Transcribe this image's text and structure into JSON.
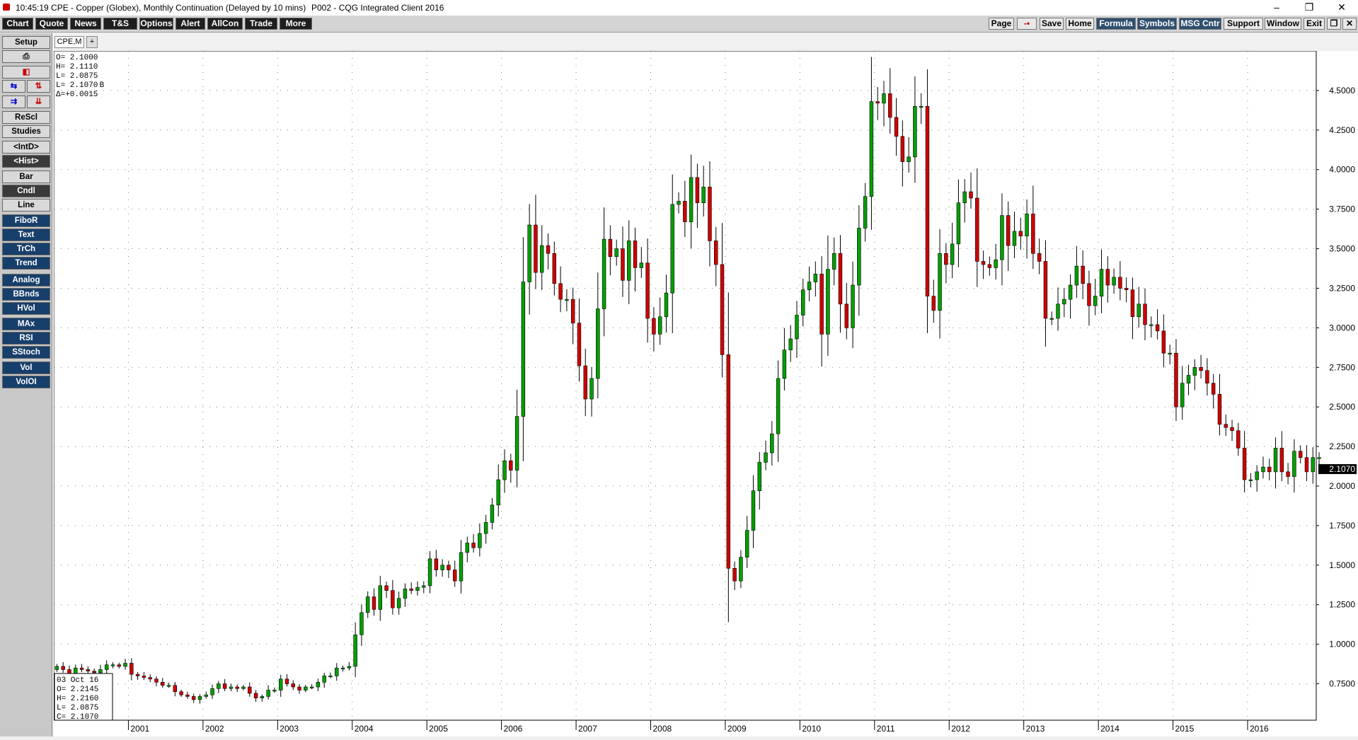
{
  "window": {
    "title": "10:45:19  CPE - Copper (Globex), Monthly Continuation (Delayed by 10 mins)",
    "status": "P002 - CQG Integrated Client 2016",
    "controls": [
      "–",
      "❐",
      "✕"
    ]
  },
  "menubar": {
    "left": [
      "Chart",
      "Quote",
      "News",
      "T&S",
      "Options",
      "Alert",
      "AllCon",
      "Trade",
      "More"
    ],
    "right": [
      "Page",
      "-•",
      "Save",
      "Home",
      "Formula",
      "Symbols",
      "MSG Cntr",
      "Support",
      "Window",
      "Exit",
      "❐",
      "✕"
    ]
  },
  "sidebar": {
    "setup": "Setup",
    "print_icon": "⎙",
    "icon_row1": "◧",
    "icon_row2": [
      "⇆",
      "⇅"
    ],
    "icon_row3": [
      "⇉",
      "⇊"
    ],
    "buttons": [
      "ReScl",
      "Studies",
      "<IntD>",
      "<Hist>",
      "Bar",
      "Cndl",
      "Line",
      "FiboR",
      "Text",
      "TrCh",
      "Trend",
      "Analog",
      "BBnds",
      "HVol",
      "MAx",
      "RSI",
      "SStoch",
      "Vol",
      "VolOI"
    ]
  },
  "tabs": {
    "active": "CPE,M",
    "add": "+"
  },
  "ohlc_top": [
    "O=  2.1000",
    "H=  2.1110",
    "L=  2.0875",
    "L=  2.1070 B",
    "Δ=+0.0015"
  ],
  "cursor_box": [
    "03 Oct 16",
    "O=  2.2145",
    "H=  2.2160",
    "L=  2.0875",
    "C=  2.1070"
  ],
  "last_price_label": "2.1070",
  "colors": {
    "up": "#00a000",
    "down": "#d00000",
    "wick": "#000000",
    "grid": "#808080",
    "last_bg": "#000000"
  },
  "chart_data": {
    "type": "candlestick",
    "yticks": [
      "4.5000",
      "4.2500",
      "4.0000",
      "3.7500",
      "3.5000",
      "3.2500",
      "3.0000",
      "2.7500",
      "2.5000",
      "2.2500",
      "2.0000",
      "1.7500",
      "1.5000",
      "1.2500",
      "1.0000",
      "0.7500"
    ],
    "xticks": [
      "2001",
      "2002",
      "2003",
      "2004",
      "2005",
      "2006",
      "2007",
      "2008",
      "2009",
      "2010",
      "2011",
      "2012",
      "2013",
      "2014",
      "2015",
      "2016"
    ],
    "ylim": [
      0.52,
      4.75
    ],
    "x_start": 2000.0,
    "x_end": 2016.92,
    "monthly_close": [
      0.86,
      0.84,
      0.8,
      0.85,
      0.84,
      0.83,
      0.82,
      0.84,
      0.87,
      0.87,
      0.86,
      0.88,
      0.81,
      0.8,
      0.79,
      0.78,
      0.76,
      0.74,
      0.74,
      0.7,
      0.68,
      0.67,
      0.65,
      0.67,
      0.68,
      0.72,
      0.75,
      0.72,
      0.73,
      0.72,
      0.73,
      0.69,
      0.66,
      0.67,
      0.71,
      0.71,
      0.78,
      0.75,
      0.73,
      0.71,
      0.73,
      0.73,
      0.76,
      0.8,
      0.8,
      0.85,
      0.85,
      0.86,
      1.06,
      1.2,
      1.3,
      1.22,
      1.37,
      1.34,
      1.23,
      1.29,
      1.35,
      1.34,
      1.36,
      1.37,
      1.54,
      1.47,
      1.5,
      1.47,
      1.4,
      1.58,
      1.64,
      1.61,
      1.7,
      1.77,
      1.88,
      2.04,
      2.16,
      2.1,
      2.44,
      3.29,
      3.65,
      3.35,
      3.52,
      3.47,
      3.28,
      3.18,
      3.18,
      3.03,
      2.76,
      2.55,
      2.68,
      3.12,
      3.56,
      3.45,
      3.5,
      3.3,
      3.55,
      3.38,
      3.41,
      3.06,
      2.96,
      3.07,
      3.22,
      3.78,
      3.8,
      3.67,
      3.95,
      3.79,
      3.89,
      3.55,
      3.4,
      2.83,
      1.48,
      1.4,
      1.55,
      1.72,
      1.97,
      2.15,
      2.21,
      2.33,
      2.68,
      2.86,
      2.93,
      3.08,
      3.24,
      3.29,
      3.34,
      2.96,
      3.37,
      3.47,
      3.15,
      3.0,
      3.27,
      3.63,
      3.83,
      4.43,
      4.42,
      4.48,
      4.33,
      4.21,
      4.05,
      4.08,
      4.4,
      4.4,
      3.2,
      3.11,
      3.47,
      3.4,
      3.53,
      3.79,
      3.86,
      3.82,
      3.42,
      3.4,
      3.38,
      3.43,
      3.71,
      3.52,
      3.61,
      3.58,
      3.72,
      3.47,
      3.42,
      3.06,
      3.06,
      3.15,
      3.18,
      3.27,
      3.39,
      3.28,
      3.14,
      3.2,
      3.37,
      3.27,
      3.32,
      3.25,
      3.24,
      3.07,
      3.15,
      3.02,
      3.02,
      2.98,
      2.84,
      2.84,
      2.5,
      2.65,
      2.7,
      2.75,
      2.73,
      2.65,
      2.58,
      2.39,
      2.37,
      2.35,
      2.24,
      2.04,
      2.04,
      2.09,
      2.12,
      2.09,
      2.24,
      2.09,
      2.06,
      2.22,
      2.18,
      2.09,
      2.18,
      2.18
    ]
  }
}
